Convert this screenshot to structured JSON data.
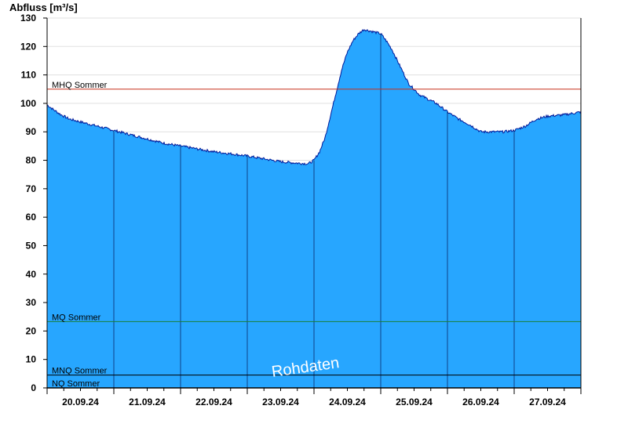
{
  "chart_data": {
    "type": "area",
    "ylabel": "Abfluss [m³/s]",
    "ylim": [
      0,
      130
    ],
    "yticks": [
      0,
      10,
      20,
      30,
      40,
      50,
      60,
      70,
      80,
      90,
      100,
      110,
      120,
      130
    ],
    "x_start": "20.09.24 00:00",
    "x_end": "28.09.24 00:00",
    "xtick_labels": [
      "20.09.24",
      "21.09.24",
      "22.09.24",
      "23.09.24",
      "24.09.24",
      "25.09.24",
      "26.09.24",
      "27.09.24"
    ],
    "grid": true,
    "series": [
      {
        "values_time_hours_from_start": [
          0,
          2,
          5,
          8,
          12,
          18,
          24,
          30,
          36,
          42,
          48,
          54,
          60,
          66,
          72,
          78,
          84,
          90,
          94,
          96,
          98,
          100,
          102,
          104,
          106,
          108,
          110,
          112,
          114,
          116,
          118,
          120,
          122,
          124,
          126,
          128,
          130,
          132,
          134,
          136,
          140,
          144,
          148,
          152,
          156,
          160,
          164,
          168,
          172,
          176,
          180,
          186,
          192
        ],
        "values": [
          99.5,
          98,
          96,
          94.5,
          93.5,
          92,
          90.5,
          89,
          87.5,
          86,
          85,
          84,
          83,
          82.3,
          81.5,
          80.5,
          79.5,
          79,
          78.8,
          80,
          83,
          88,
          96,
          104,
          112,
          118,
          122,
          124.5,
          126,
          125.5,
          125,
          124.5,
          122,
          119,
          115,
          111,
          107,
          105,
          103,
          102,
          100,
          97,
          94.5,
          92.5,
          90,
          90,
          90,
          90.5,
          92,
          94.5,
          95.5,
          96,
          97
        ]
      }
    ],
    "reference_lines": [
      {
        "label": "MHQ Sommer",
        "value": 105,
        "color": "#c8321e"
      },
      {
        "label": "MQ Sommer",
        "value": 23.3,
        "color": "#1a7f3a"
      },
      {
        "label": "MNQ Sommer",
        "value": 4.5,
        "color": "#000000"
      },
      {
        "label": "NQ Sommer",
        "value": 0,
        "color": "#000000"
      }
    ],
    "watermark": "Rohdaten",
    "colors": {
      "fill": "#27a6ff",
      "outline": "#001a9a",
      "grid": "#e0e0e0"
    }
  }
}
